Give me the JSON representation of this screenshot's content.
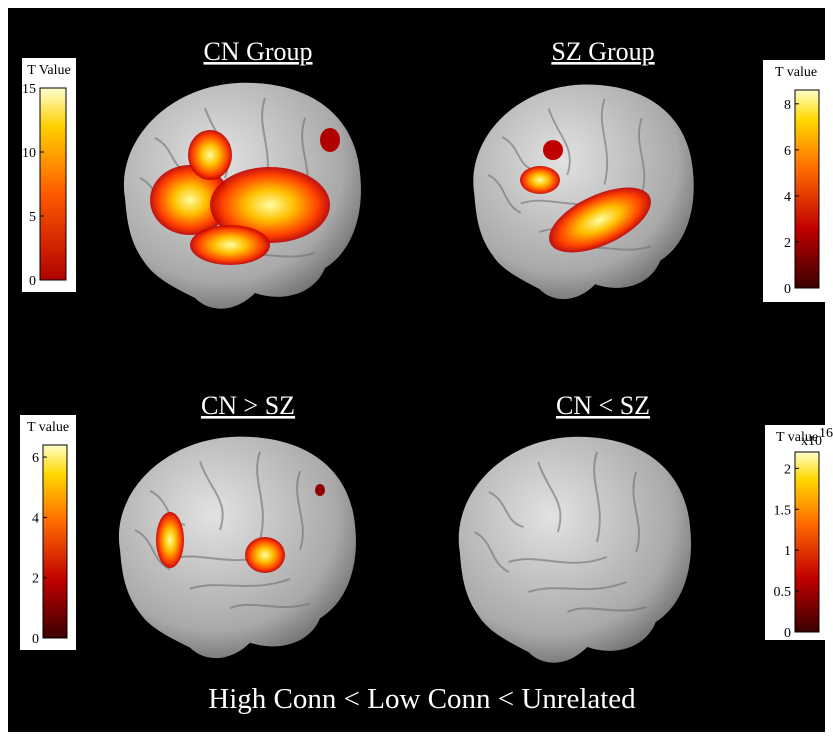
{
  "panels": [
    {
      "title": "CN Group",
      "colorbar": {
        "label": "T Value",
        "range": [
          0,
          15
        ],
        "ticks": [
          0,
          5,
          10,
          15
        ]
      }
    },
    {
      "title": "SZ Group",
      "colorbar": {
        "label": "T value",
        "range": [
          0,
          8.6
        ],
        "ticks": [
          0,
          2,
          4,
          6,
          8
        ]
      }
    },
    {
      "title": "CN > SZ",
      "colorbar": {
        "label": "T value",
        "range": [
          0,
          6.4
        ],
        "ticks": [
          0,
          2,
          4,
          6
        ]
      }
    },
    {
      "title": "CN < SZ",
      "colorbar": {
        "label": "T value",
        "multiplier": "x10",
        "exponent": "16",
        "range": [
          0,
          2.2
        ],
        "ticks": [
          0,
          0.5,
          1,
          1.5,
          2
        ]
      }
    }
  ],
  "caption": "High Conn < Low Conn < Unrelated"
}
